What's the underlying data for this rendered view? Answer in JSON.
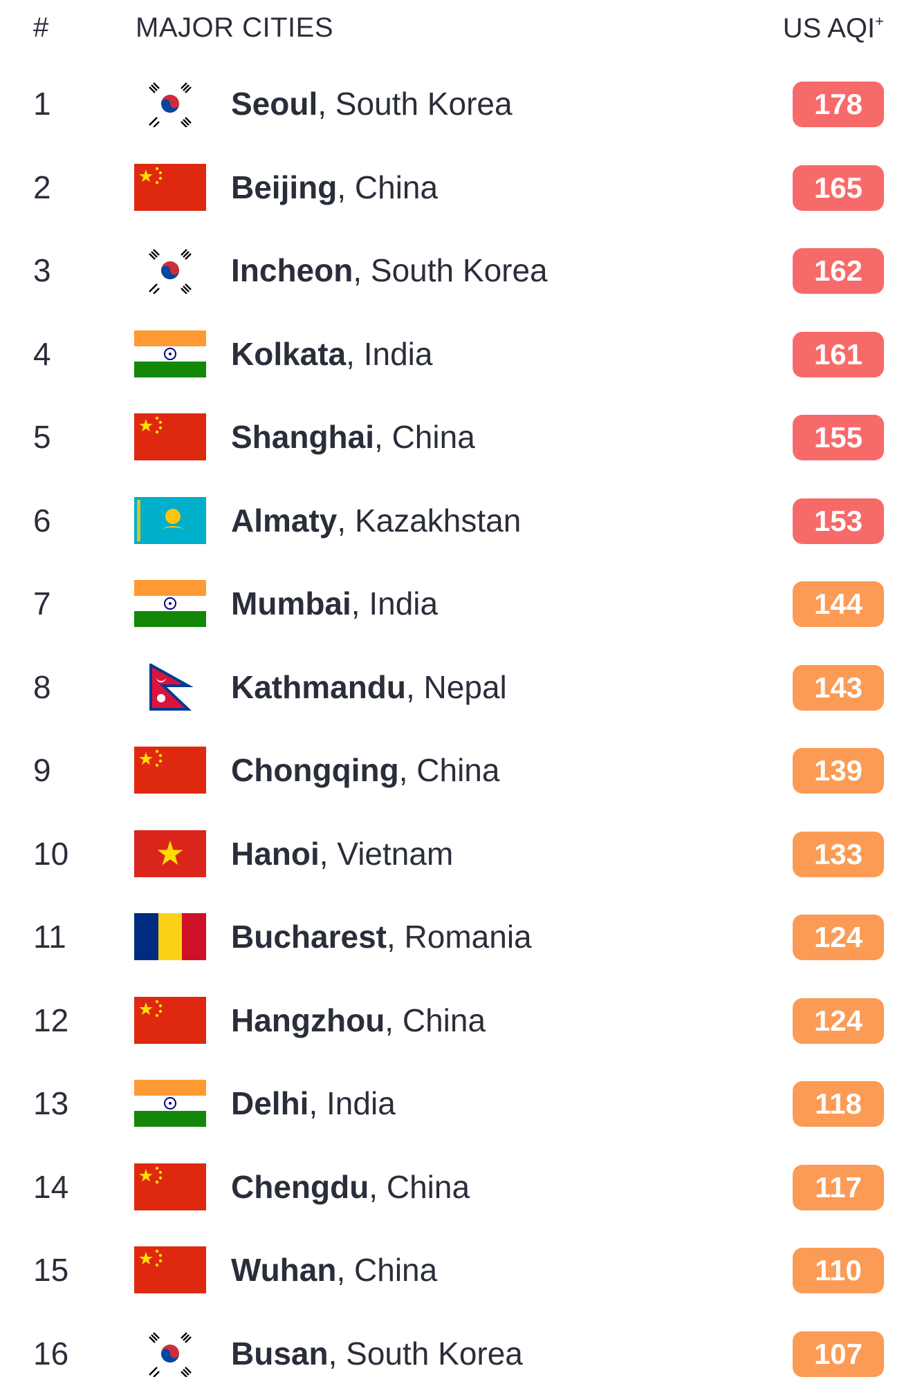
{
  "header": {
    "rank_label": "#",
    "cities_label": "MAJOR CITIES",
    "aqi_label": "US AQI",
    "aqi_suffix": "+"
  },
  "colors": {
    "unhealthy": "#f76a6a",
    "sensitive": "#fb9b55"
  },
  "rows": [
    {
      "rank": "1",
      "city": "Seoul",
      "country": ", South Korea",
      "flag": "south-korea-flag-icon",
      "aqi": "178",
      "level": "unhealthy"
    },
    {
      "rank": "2",
      "city": "Beijing",
      "country": ", China",
      "flag": "china-flag-icon",
      "aqi": "165",
      "level": "unhealthy"
    },
    {
      "rank": "3",
      "city": "Incheon",
      "country": ", South Korea",
      "flag": "south-korea-flag-icon",
      "aqi": "162",
      "level": "unhealthy"
    },
    {
      "rank": "4",
      "city": "Kolkata",
      "country": ", India",
      "flag": "india-flag-icon",
      "aqi": "161",
      "level": "unhealthy"
    },
    {
      "rank": "5",
      "city": "Shanghai",
      "country": ", China",
      "flag": "china-flag-icon",
      "aqi": "155",
      "level": "unhealthy"
    },
    {
      "rank": "6",
      "city": "Almaty",
      "country": ", Kazakhstan",
      "flag": "kazakhstan-flag-icon",
      "aqi": "153",
      "level": "unhealthy"
    },
    {
      "rank": "7",
      "city": "Mumbai",
      "country": ", India",
      "flag": "india-flag-icon",
      "aqi": "144",
      "level": "sensitive"
    },
    {
      "rank": "8",
      "city": "Kathmandu",
      "country": ", Nepal",
      "flag": "nepal-flag-icon",
      "aqi": "143",
      "level": "sensitive"
    },
    {
      "rank": "9",
      "city": "Chongqing",
      "country": ", China",
      "flag": "china-flag-icon",
      "aqi": "139",
      "level": "sensitive"
    },
    {
      "rank": "10",
      "city": "Hanoi",
      "country": ", Vietnam",
      "flag": "vietnam-flag-icon",
      "aqi": "133",
      "level": "sensitive"
    },
    {
      "rank": "11",
      "city": "Bucharest",
      "country": ", Romania",
      "flag": "romania-flag-icon",
      "aqi": "124",
      "level": "sensitive"
    },
    {
      "rank": "12",
      "city": "Hangzhou",
      "country": ", China",
      "flag": "china-flag-icon",
      "aqi": "124",
      "level": "sensitive"
    },
    {
      "rank": "13",
      "city": "Delhi",
      "country": ", India",
      "flag": "india-flag-icon",
      "aqi": "118",
      "level": "sensitive"
    },
    {
      "rank": "14",
      "city": "Chengdu",
      "country": ", China",
      "flag": "china-flag-icon",
      "aqi": "117",
      "level": "sensitive"
    },
    {
      "rank": "15",
      "city": "Wuhan",
      "country": ", China",
      "flag": "china-flag-icon",
      "aqi": "110",
      "level": "sensitive"
    },
    {
      "rank": "16",
      "city": "Busan",
      "country": ", South Korea",
      "flag": "south-korea-flag-icon",
      "aqi": "107",
      "level": "sensitive"
    }
  ]
}
